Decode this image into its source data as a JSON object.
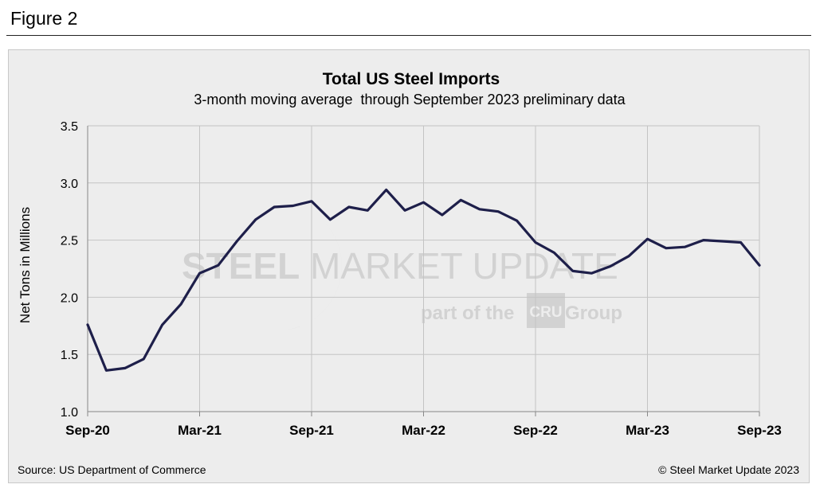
{
  "figure_label": "Figure 2",
  "source": "Source: US Department of Commerce",
  "copyright": "© Steel Market Update 2023",
  "watermark": {
    "line1_bold": "STEEL",
    "line1_rest": " MARKET UPDATE",
    "line2_pre": "part of the ",
    "line2_logo": "CRU",
    "line2_post": " Group"
  },
  "colors": {
    "line": "#1e1f4a",
    "grid": "#c4c4c4",
    "panel": "#ededed"
  },
  "chart_data": {
    "type": "line",
    "title": "Total US Steel Imports",
    "subtitle": "3-month moving average  through September 2023 preliminary data",
    "ylabel": "Net Tons in Millions",
    "xlabel": "",
    "ylim": [
      1.0,
      3.5
    ],
    "yticks": [
      "1.0",
      "1.5",
      "2.0",
      "2.5",
      "3.0",
      "3.5"
    ],
    "xtick_labels": [
      {
        "index": 0,
        "label": "Sep-20"
      },
      {
        "index": 6,
        "label": "Mar-21"
      },
      {
        "index": 12,
        "label": "Sep-21"
      },
      {
        "index": 18,
        "label": "Mar-22"
      },
      {
        "index": 24,
        "label": "Sep-22"
      },
      {
        "index": 30,
        "label": "Mar-23"
      },
      {
        "index": 36,
        "label": "Sep-23"
      }
    ],
    "grid": true,
    "series": [
      {
        "name": "Total US Steel Imports (3MMA)",
        "values": [
          1.76,
          1.36,
          1.38,
          1.46,
          1.76,
          1.94,
          2.21,
          2.28,
          2.49,
          2.68,
          2.79,
          2.8,
          2.84,
          2.68,
          2.79,
          2.76,
          2.94,
          2.76,
          2.83,
          2.72,
          2.85,
          2.77,
          2.75,
          2.67,
          2.48,
          2.39,
          2.23,
          2.21,
          2.27,
          2.36,
          2.51,
          2.43,
          2.44,
          2.5,
          2.49,
          2.48,
          2.28
        ]
      }
    ]
  }
}
